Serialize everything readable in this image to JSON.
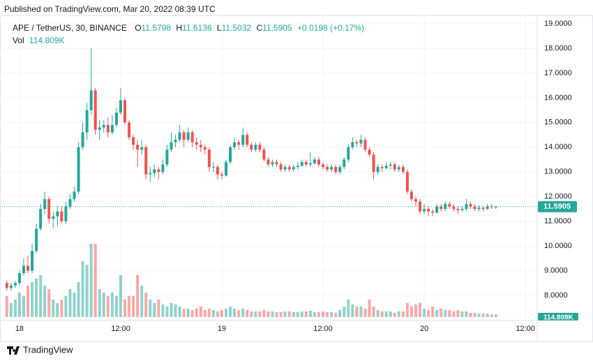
{
  "header": {
    "published": "Published on TradingView.com, Mar 20, 2022 08:39 UTC"
  },
  "footer": {
    "brand": "TradingView"
  },
  "chart_data": {
    "type": "candlestick",
    "title": "APE / TetherUS, 30, BINANCE",
    "legend": {
      "o": "O",
      "open": "11.5798",
      "h": "H",
      "high": "11.6136",
      "l": "L",
      "low": "11.5032",
      "c": "C",
      "close": "11.5905",
      "change": "+0.0198 (+0.17%)",
      "vol": "Vol",
      "volume": "114.809K"
    },
    "last_price": 11.5905,
    "last_price_label": "11.5905",
    "last_volume_label": "114.809K",
    "up_color": "#26a69a",
    "down_color": "#ef5350",
    "up_volume_color": "rgba(38,166,154,0.5)",
    "down_volume_color": "rgba(239,83,80,0.5)",
    "grid": true,
    "xlim": [
      -0.3,
      125.8
    ],
    "xticks": [
      {
        "value": 3,
        "label": "18"
      },
      {
        "value": 27,
        "label": "12:00"
      },
      {
        "value": 51,
        "label": "19"
      },
      {
        "value": 75,
        "label": "12:00"
      },
      {
        "value": 99,
        "label": "20"
      },
      {
        "value": 123,
        "label": "12:00"
      }
    ],
    "ylim": [
      7.124,
      19.339
    ],
    "yticks": [
      {
        "value": 8,
        "label": "8.0000"
      },
      {
        "value": 9,
        "label": "9.0000"
      },
      {
        "value": 10,
        "label": "10.0000"
      },
      {
        "value": 11,
        "label": "11.0000"
      },
      {
        "value": 12,
        "label": "12.0000"
      },
      {
        "value": 13,
        "label": "13.0000"
      },
      {
        "value": 14,
        "label": "14.0000"
      },
      {
        "value": 15,
        "label": "15.0000"
      },
      {
        "value": 16,
        "label": "16.0000"
      },
      {
        "value": 17,
        "label": "17.0000"
      },
      {
        "value": 18,
        "label": "18.0000"
      },
      {
        "value": 19,
        "label": "19.0000"
      }
    ],
    "volume_lim": [
      0,
      3500
    ],
    "open": [
      8.5,
      8.3,
      8.4,
      8.5,
      8.9,
      9.2,
      9.0,
      9.8,
      10.7,
      11.5,
      11.9,
      11.1,
      11.2,
      11.4,
      11.0,
      11.6,
      11.9,
      12.2,
      14.0,
      14.6,
      15.5,
      16.3,
      14.7,
      14.8,
      14.9,
      14.6,
      14.9,
      15.4,
      15.9,
      15.0,
      14.4,
      14.1,
      13.9,
      14.0,
      12.9,
      12.95,
      13.1,
      13.0,
      13.3,
      13.9,
      14.2,
      14.3,
      14.6,
      14.3,
      14.6,
      14.2,
      14.1,
      14.0,
      13.9,
      13.2,
      13.2,
      12.9,
      12.85,
      13.4,
      14.0,
      14.2,
      14.1,
      14.5,
      14.1,
      13.9,
      14.1,
      13.9,
      13.5,
      13.3,
      13.4,
      13.3,
      13.1,
      13.2,
      13.1,
      13.2,
      13.25,
      13.4,
      13.3,
      13.35,
      13.5,
      13.3,
      13.2,
      13.1,
      13.2,
      13.0,
      13.2,
      13.5,
      14.0,
      14.2,
      14.15,
      14.3,
      13.9,
      13.7,
      13.0,
      13.2,
      13.15,
      13.25,
      13.3,
      13.1,
      13.2,
      13.0,
      12.2,
      11.9,
      11.8,
      11.4,
      11.5,
      11.4,
      11.35,
      11.6,
      11.5,
      11.7,
      11.6,
      11.5,
      11.45,
      11.5,
      11.7,
      11.6,
      11.5,
      11.55,
      11.5,
      11.6,
      11.5798
    ],
    "high": [
      8.6,
      8.5,
      8.6,
      9.0,
      9.5,
      9.6,
      10.1,
      10.9,
      11.7,
      12.2,
      12.0,
      11.4,
      11.6,
      11.6,
      11.8,
      12.1,
      12.4,
      14.2,
      15.0,
      15.8,
      18.0,
      16.4,
      15.1,
      15.1,
      15.2,
      15.3,
      15.6,
      16.4,
      16.0,
      15.1,
      14.5,
      14.3,
      14.3,
      14.1,
      13.2,
      13.3,
      13.2,
      13.5,
      14.1,
      14.6,
      14.5,
      14.9,
      14.7,
      14.8,
      14.7,
      14.4,
      14.3,
      14.1,
      14.0,
      13.4,
      13.3,
      13.0,
      13.5,
      14.1,
      14.4,
      14.3,
      14.8,
      14.6,
      14.2,
      14.2,
      14.2,
      14.0,
      13.6,
      13.5,
      13.5,
      13.4,
      13.3,
      13.3,
      13.3,
      13.4,
      13.5,
      13.5,
      13.8,
      13.6,
      13.6,
      13.4,
      13.3,
      13.3,
      13.3,
      13.3,
      13.6,
      14.1,
      14.4,
      14.3,
      14.5,
      14.4,
      14.0,
      13.8,
      13.3,
      13.3,
      13.4,
      13.4,
      13.4,
      13.3,
      13.3,
      13.1,
      12.3,
      12.0,
      11.9,
      11.7,
      11.6,
      11.5,
      11.7,
      11.7,
      11.8,
      11.8,
      11.7,
      11.6,
      11.6,
      11.9,
      11.8,
      11.7,
      11.65,
      11.6,
      11.7,
      11.7,
      11.6136
    ],
    "low": [
      8.2,
      8.2,
      8.3,
      8.4,
      8.8,
      8.9,
      8.9,
      9.7,
      10.6,
      11.3,
      10.9,
      10.7,
      10.8,
      10.9,
      10.9,
      11.5,
      11.8,
      12.1,
      13.9,
      14.3,
      15.3,
      14.5,
      14.3,
      14.6,
      14.4,
      14.5,
      14.8,
      15.3,
      14.9,
      14.3,
      13.9,
      13.2,
      13.7,
      12.7,
      12.6,
      12.8,
      12.7,
      12.9,
      13.2,
      13.8,
      14.0,
      14.2,
      14.0,
      14.2,
      14.0,
      13.9,
      13.8,
      13.7,
      13.0,
      13.0,
      12.7,
      12.7,
      12.8,
      13.3,
      13.9,
      13.9,
      14.0,
      14.0,
      13.8,
      13.8,
      13.8,
      13.4,
      13.2,
      13.2,
      13.2,
      13.0,
      13.0,
      13.0,
      13.0,
      13.1,
      13.2,
      13.2,
      13.2,
      13.3,
      13.2,
      13.1,
      13.0,
      13.0,
      12.9,
      12.9,
      13.1,
      13.4,
      13.9,
      14.0,
      14.0,
      13.8,
      13.6,
      12.7,
      12.9,
      13.0,
      13.1,
      13.1,
      13.0,
      13.0,
      12.9,
      12.1,
      11.8,
      11.6,
      11.3,
      11.3,
      11.2,
      11.2,
      11.3,
      11.4,
      11.4,
      11.5,
      11.4,
      11.3,
      11.4,
      11.4,
      11.5,
      11.4,
      11.4,
      11.4,
      11.45,
      11.5,
      11.5032
    ],
    "close": [
      8.3,
      8.4,
      8.5,
      8.9,
      9.2,
      9.0,
      9.8,
      10.7,
      11.5,
      11.9,
      11.1,
      11.2,
      11.4,
      11.0,
      11.6,
      11.9,
      12.2,
      14.0,
      14.6,
      15.5,
      16.3,
      14.7,
      14.8,
      14.9,
      14.6,
      14.9,
      15.4,
      15.9,
      15.0,
      14.4,
      14.1,
      13.9,
      14.0,
      12.9,
      12.95,
      13.1,
      13.0,
      13.3,
      13.9,
      14.2,
      14.3,
      14.6,
      14.3,
      14.6,
      14.2,
      14.1,
      14.0,
      13.9,
      13.2,
      13.2,
      12.9,
      12.85,
      13.4,
      14.0,
      14.2,
      14.1,
      14.5,
      14.1,
      13.9,
      14.1,
      13.9,
      13.5,
      13.3,
      13.4,
      13.3,
      13.1,
      13.2,
      13.1,
      13.2,
      13.25,
      13.4,
      13.3,
      13.35,
      13.5,
      13.3,
      13.2,
      13.1,
      13.2,
      13.0,
      13.2,
      13.5,
      14.0,
      14.2,
      14.15,
      14.3,
      13.9,
      13.7,
      13.0,
      13.2,
      13.15,
      13.25,
      13.3,
      13.1,
      13.2,
      13.0,
      12.2,
      11.9,
      11.8,
      11.4,
      11.5,
      11.4,
      11.35,
      11.6,
      11.5,
      11.7,
      11.6,
      11.5,
      11.45,
      11.5,
      11.7,
      11.6,
      11.5,
      11.55,
      11.5,
      11.6,
      11.5798,
      11.5905
    ],
    "volume": [
      900,
      600,
      750,
      1050,
      900,
      1350,
      1500,
      1650,
      1800,
      1350,
      1200,
      750,
      600,
      750,
      900,
      1200,
      1050,
      1500,
      2400,
      2250,
      3150,
      3150,
      1200,
      1050,
      900,
      1050,
      900,
      1800,
      750,
      900,
      900,
      1800,
      1350,
      1050,
      750,
      600,
      750,
      540,
      450,
      600,
      540,
      450,
      360,
      360,
      300,
      360,
      450,
      300,
      360,
      300,
      240,
      300,
      360,
      450,
      360,
      300,
      360,
      300,
      240,
      240,
      240,
      300,
      240,
      240,
      210,
      210,
      240,
      240,
      210,
      210,
      240,
      240,
      270,
      210,
      210,
      240,
      210,
      210,
      180,
      300,
      450,
      750,
      540,
      450,
      450,
      360,
      750,
      450,
      300,
      240,
      240,
      240,
      180,
      240,
      240,
      600,
      450,
      540,
      600,
      360,
      300,
      450,
      300,
      360,
      300,
      300,
      240,
      300,
      240,
      240,
      180,
      180,
      150,
      150,
      150,
      120,
      114.809
    ]
  }
}
